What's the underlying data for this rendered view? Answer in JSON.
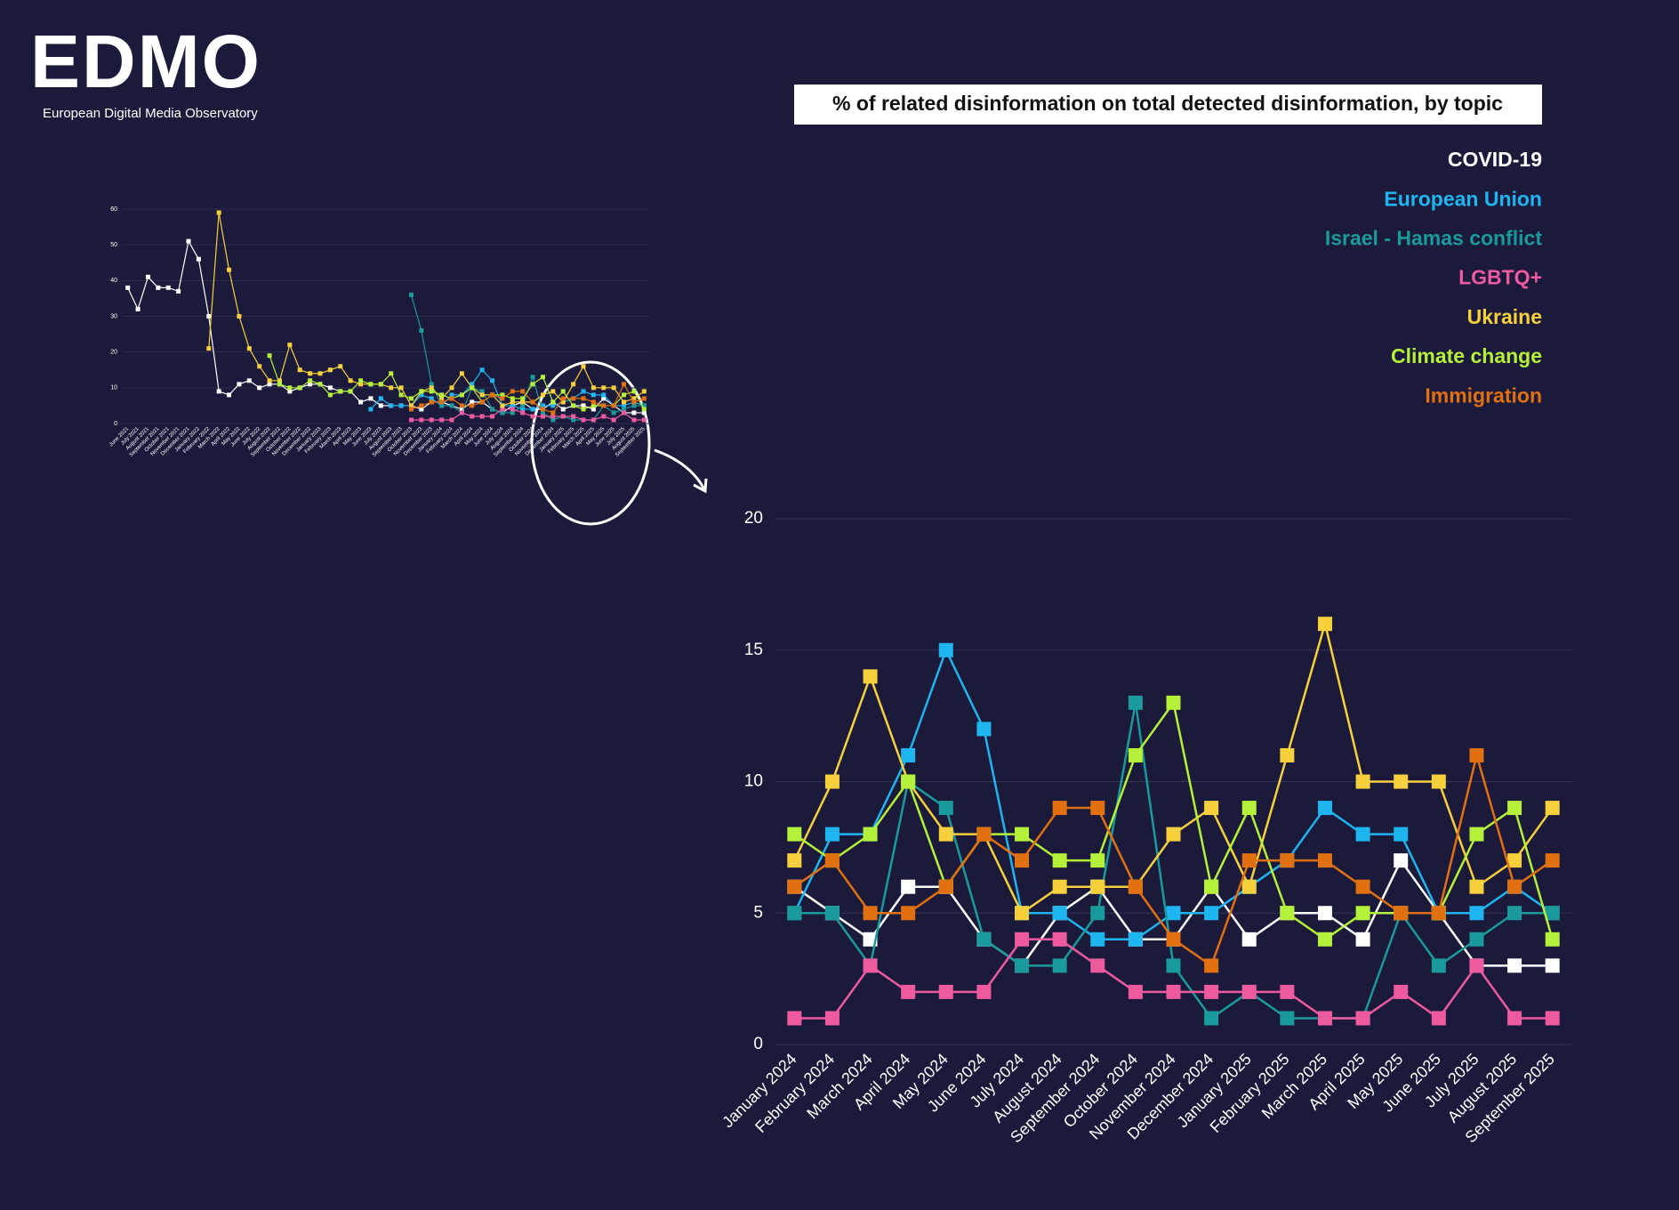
{
  "logo": {
    "text": "EDMO",
    "subtitle": "European Digital Media Observatory"
  },
  "chart_data": [
    {
      "type": "line",
      "title": "% of related disinformation on total detected disinformation, by topic",
      "categories": [
        "January 2024",
        "February 2024",
        "March 2024",
        "April 2024",
        "May 2024",
        "June 2024",
        "July 2024",
        "August 2024",
        "September 2024",
        "October 2024",
        "November 2024",
        "December 2024",
        "January 2025",
        "February 2025",
        "March 2025",
        "April 2025",
        "May 2025",
        "June 2025",
        "July 2025",
        "August 2025",
        "September 2025"
      ],
      "series": [
        {
          "name": "COVID-19",
          "color": "#ffffff",
          "values": [
            6,
            5,
            4,
            6,
            6,
            4,
            3,
            5,
            6,
            4,
            4,
            6,
            4,
            5,
            5,
            4,
            7,
            5,
            3,
            3,
            3
          ]
        },
        {
          "name": "European Union",
          "color": "#1fb5f0",
          "values": [
            5,
            8,
            8,
            11,
            15,
            12,
            5,
            5,
            4,
            4,
            5,
            5,
            6,
            7,
            9,
            8,
            8,
            5,
            5,
            6,
            5
          ]
        },
        {
          "name": "Israel - Hamas conflict",
          "color": "#1a9a9a",
          "values": [
            5,
            5,
            3,
            10,
            9,
            4,
            3,
            3,
            5,
            13,
            3,
            1,
            2,
            1,
            1,
            1,
            5,
            3,
            4,
            5,
            5
          ]
        },
        {
          "name": "LGBTQ+",
          "color": "#ee5aa0",
          "values": [
            1,
            1,
            3,
            2,
            2,
            2,
            4,
            4,
            3,
            2,
            2,
            2,
            2,
            2,
            1,
            1,
            2,
            1,
            3,
            1,
            1
          ]
        },
        {
          "name": "Ukraine",
          "color": "#f7d13d",
          "values": [
            7,
            10,
            14,
            10,
            8,
            8,
            5,
            6,
            6,
            6,
            8,
            9,
            6,
            11,
            16,
            10,
            10,
            10,
            6,
            7,
            9
          ]
        },
        {
          "name": "Climate change",
          "color": "#b5f03a",
          "values": [
            8,
            7,
            8,
            10,
            6,
            8,
            8,
            7,
            7,
            11,
            13,
            6,
            9,
            5,
            4,
            5,
            5,
            5,
            8,
            9,
            4
          ]
        },
        {
          "name": "Immigration",
          "color": "#e07010",
          "values": [
            6,
            7,
            5,
            5,
            6,
            8,
            7,
            9,
            9,
            6,
            4,
            3,
            7,
            7,
            7,
            6,
            5,
            5,
            11,
            6,
            7
          ]
        }
      ],
      "ylim": [
        0,
        20
      ],
      "yticks": [
        0,
        5,
        10,
        15,
        20
      ],
      "grid": true,
      "legend": "right"
    },
    {
      "type": "line",
      "categories": [
        "June 2021",
        "July 2021",
        "August 2021",
        "September 2021",
        "October 2021",
        "November 2021",
        "December 2021",
        "January 2022",
        "February 2022",
        "March 2022",
        "April 2022",
        "May 2022",
        "June 2022",
        "July 2022",
        "August 2022",
        "September 2022",
        "October 2022",
        "November 2022",
        "December 2022",
        "January 2023",
        "February 2023",
        "March 2023",
        "April 2023",
        "May 2023",
        "June 2023",
        "July 2023",
        "August 2023",
        "September 2023",
        "October 2023",
        "November 2023",
        "December 2023",
        "January 2024",
        "February 2024",
        "March 2024",
        "April 2024",
        "May 2024",
        "June 2024",
        "July 2024",
        "August 2024",
        "September 2024",
        "October 2024",
        "November 2024",
        "December 2024",
        "January 2025",
        "February 2025",
        "March 2025",
        "April 2025",
        "May 2025",
        "June 2025",
        "July 2025",
        "August 2025",
        "September 2025"
      ],
      "series": [
        {
          "color": "#ffffff",
          "values": [
            38,
            32,
            41,
            38,
            38,
            37,
            51,
            46,
            30,
            9,
            8,
            11,
            12,
            10,
            11,
            11,
            9,
            10,
            11,
            11,
            10,
            9,
            9,
            6,
            7,
            5,
            5,
            5,
            5,
            4,
            6,
            6,
            5,
            4,
            6,
            6,
            4,
            3,
            5,
            6,
            4,
            4,
            6,
            4,
            5,
            5,
            4,
            7,
            5,
            3,
            3,
            3
          ]
        },
        {
          "color": "#1fb5f0",
          "values": [
            null,
            null,
            null,
            null,
            null,
            null,
            null,
            null,
            null,
            null,
            null,
            null,
            null,
            null,
            null,
            null,
            null,
            null,
            null,
            null,
            null,
            null,
            null,
            null,
            4,
            7,
            5,
            5,
            5,
            8,
            7,
            5,
            8,
            8,
            11,
            15,
            12,
            5,
            5,
            4,
            4,
            5,
            5,
            6,
            7,
            9,
            8,
            8,
            5,
            5,
            6,
            5
          ]
        },
        {
          "color": "#1a9a9a",
          "values": [
            null,
            null,
            null,
            null,
            null,
            null,
            null,
            null,
            null,
            null,
            null,
            null,
            null,
            null,
            null,
            null,
            null,
            null,
            null,
            null,
            null,
            null,
            null,
            null,
            null,
            null,
            null,
            null,
            36,
            26,
            11,
            5,
            5,
            3,
            10,
            9,
            4,
            3,
            3,
            5,
            13,
            3,
            1,
            2,
            1,
            1,
            1,
            5,
            3,
            4,
            5,
            5
          ]
        },
        {
          "color": "#ee5aa0",
          "values": [
            null,
            null,
            null,
            null,
            null,
            null,
            null,
            null,
            null,
            null,
            null,
            null,
            null,
            null,
            null,
            null,
            null,
            null,
            null,
            null,
            null,
            null,
            null,
            null,
            null,
            null,
            null,
            null,
            1,
            1,
            1,
            1,
            1,
            3,
            2,
            2,
            2,
            4,
            4,
            3,
            2,
            2,
            2,
            2,
            2,
            1,
            1,
            2,
            1,
            3,
            1,
            1
          ]
        },
        {
          "color": "#f7d13d",
          "values": [
            null,
            null,
            null,
            null,
            null,
            null,
            null,
            null,
            21,
            59,
            43,
            30,
            21,
            16,
            12,
            12,
            22,
            15,
            14,
            14,
            15,
            16,
            12,
            11,
            11,
            11,
            10,
            10,
            5,
            9,
            10,
            7,
            10,
            14,
            10,
            8,
            8,
            5,
            6,
            6,
            6,
            8,
            9,
            6,
            11,
            16,
            10,
            10,
            10,
            6,
            7,
            9
          ]
        },
        {
          "color": "#b5f03a",
          "values": [
            null,
            null,
            null,
            null,
            null,
            null,
            null,
            null,
            null,
            null,
            null,
            null,
            null,
            null,
            19,
            11,
            10,
            10,
            12,
            11,
            8,
            9,
            9,
            12,
            11,
            11,
            14,
            8,
            7,
            9,
            9,
            8,
            7,
            8,
            10,
            6,
            8,
            8,
            7,
            7,
            11,
            13,
            6,
            9,
            5,
            4,
            5,
            5,
            5,
            8,
            9,
            4
          ]
        },
        {
          "color": "#e07010",
          "values": [
            null,
            null,
            null,
            null,
            null,
            null,
            null,
            null,
            null,
            null,
            null,
            null,
            null,
            null,
            null,
            null,
            null,
            null,
            null,
            null,
            null,
            null,
            null,
            null,
            null,
            null,
            null,
            null,
            4,
            5,
            6,
            6,
            7,
            5,
            5,
            6,
            8,
            7,
            9,
            9,
            6,
            4,
            3,
            7,
            7,
            7,
            6,
            5,
            5,
            11,
            6,
            7
          ]
        }
      ],
      "ylim": [
        0,
        60
      ],
      "yticks": [
        0,
        10,
        20,
        30,
        40,
        50,
        60
      ],
      "grid": true
    }
  ]
}
